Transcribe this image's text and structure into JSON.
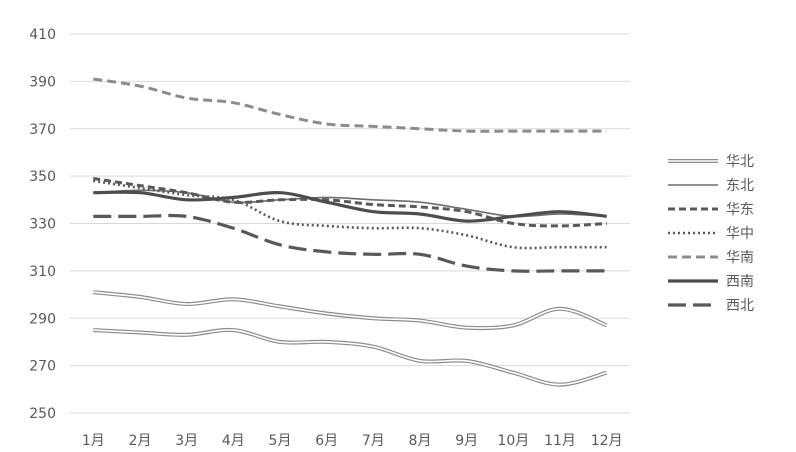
{
  "chart_data": {
    "type": "line",
    "title": "",
    "xlabel": "",
    "ylabel": "",
    "categories": [
      "1月",
      "2月",
      "3月",
      "4月",
      "5月",
      "6月",
      "7月",
      "8月",
      "9月",
      "10月",
      "11月",
      "12月"
    ],
    "ylim": [
      250,
      410
    ],
    "yticks": [
      250,
      270,
      290,
      310,
      330,
      350,
      370,
      390,
      410
    ],
    "grid": true,
    "legend_position": "right",
    "series": [
      {
        "name": "华北",
        "style": "double",
        "color": "#8c8c8c",
        "values": [
          301,
          299,
          296,
          298,
          295,
          292,
          290,
          289,
          286,
          287,
          294,
          287
        ]
      },
      {
        "name": "华北",
        "style": "double",
        "color": "#8c8c8c",
        "legend": false,
        "values": [
          285,
          284,
          283,
          285,
          280,
          280,
          278,
          272,
          272,
          267,
          262,
          267
        ]
      },
      {
        "name": "东北",
        "style": "solid-thin",
        "color": "#6d6d6d",
        "values": [
          343,
          344,
          343,
          339,
          340,
          341,
          340,
          339,
          336,
          333,
          334,
          333
        ]
      },
      {
        "name": "华东",
        "style": "dashed",
        "color": "#595959",
        "values": [
          349,
          346,
          343,
          339,
          340,
          340,
          338,
          337,
          335,
          330,
          329,
          330
        ]
      },
      {
        "name": "华中",
        "style": "dotted",
        "color": "#595959",
        "values": [
          348,
          345,
          342,
          340,
          331,
          329,
          328,
          328,
          325,
          320,
          320,
          320
        ]
      },
      {
        "name": "华南",
        "style": "dashed-light",
        "color": "#8c8c8c",
        "values": [
          391,
          388,
          383,
          381,
          376,
          372,
          371,
          370,
          369,
          369,
          369,
          369
        ]
      },
      {
        "name": "西南",
        "style": "solid-thick",
        "color": "#4d4d4d",
        "values": [
          343,
          343,
          340,
          341,
          343,
          339,
          335,
          334,
          331,
          333,
          335,
          333
        ]
      },
      {
        "name": "西北",
        "style": "longdash",
        "color": "#595959",
        "values": [
          333,
          333,
          333,
          328,
          321,
          318,
          317,
          317,
          312,
          310,
          310,
          310
        ]
      }
    ]
  }
}
